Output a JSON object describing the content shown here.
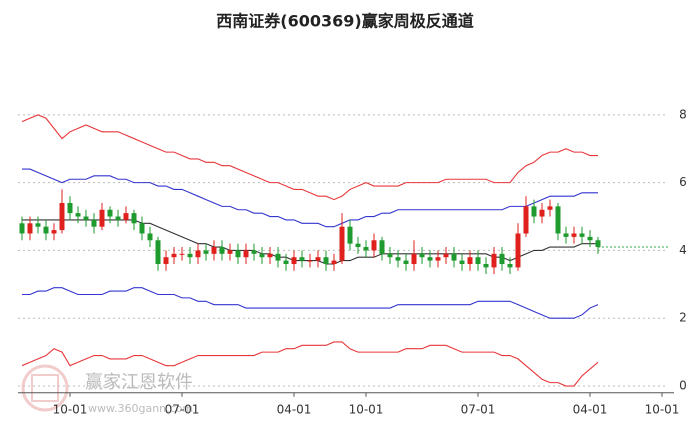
{
  "chart_data": {
    "type": "candlestick",
    "title": "西南证券(600369)赢家周极反通道",
    "watermark": [
      "赢家江恩软件",
      "www.360gann.com"
    ],
    "categories": [
      null,
      null,
      null,
      null,
      null,
      null,
      "10-01",
      null,
      null,
      null,
      null,
      null,
      null,
      null,
      null,
      null,
      null,
      null,
      null,
      null,
      "07-01",
      null,
      null,
      null,
      null,
      null,
      null,
      null,
      null,
      null,
      null,
      null,
      null,
      null,
      "04-01",
      null,
      null,
      null,
      null,
      null,
      null,
      null,
      null,
      "10-01",
      null,
      null,
      null,
      null,
      null,
      null,
      null,
      null,
      null,
      null,
      null,
      null,
      null,
      "07-01",
      null,
      null,
      null,
      null,
      null,
      null,
      null,
      null,
      null,
      null,
      null,
      null,
      null,
      "04-01",
      null,
      null,
      null,
      null,
      null,
      null,
      null,
      null,
      "10-01",
      null
    ],
    "open": [
      4.8,
      4.5,
      4.8,
      4.7,
      4.5,
      4.6,
      5.4,
      5.1,
      5.0,
      4.9,
      4.7,
      5.2,
      5.0,
      4.9,
      5.1,
      4.8,
      4.5,
      4.3,
      3.6,
      3.8,
      3.9,
      3.9,
      3.8,
      4.0,
      3.9,
      4.1,
      3.9,
      4.0,
      3.8,
      4.0,
      3.9,
      3.8,
      3.9,
      3.7,
      3.6,
      3.8,
      3.7,
      3.7,
      3.8,
      3.6,
      3.7,
      4.7,
      4.2,
      4.1,
      4.0,
      4.3,
      3.9,
      3.8,
      3.7,
      3.6,
      3.9,
      3.8,
      3.7,
      3.8,
      3.9,
      3.7,
      3.6,
      3.8,
      3.6,
      3.5,
      3.9,
      3.6,
      3.5,
      4.5,
      5.3,
      5.0,
      5.2,
      5.3,
      4.5,
      4.4,
      4.5,
      4.4,
      4.3,
      null,
      null,
      null,
      null,
      null,
      null,
      null,
      null,
      null
    ],
    "high": [
      5.0,
      5.0,
      5.0,
      4.9,
      4.8,
      5.8,
      5.6,
      5.3,
      5.2,
      5.1,
      5.4,
      5.3,
      5.2,
      5.3,
      5.2,
      5.0,
      4.7,
      4.4,
      4.0,
      4.1,
      4.1,
      4.1,
      4.2,
      4.2,
      4.3,
      4.3,
      4.2,
      4.2,
      4.2,
      4.2,
      4.1,
      4.1,
      4.1,
      3.9,
      4.0,
      4.0,
      3.9,
      4.0,
      4.0,
      3.9,
      5.1,
      4.9,
      4.4,
      4.3,
      4.5,
      4.4,
      4.1,
      4.0,
      3.9,
      4.3,
      4.1,
      4.0,
      4.0,
      4.1,
      4.1,
      3.9,
      4.0,
      4.0,
      3.8,
      4.1,
      4.1,
      3.8,
      4.8,
      5.6,
      5.5,
      5.4,
      5.5,
      5.4,
      4.7,
      4.7,
      4.7,
      4.6,
      4.4,
      null,
      null,
      null,
      null,
      null,
      null,
      null,
      null,
      null
    ],
    "low": [
      4.3,
      4.3,
      4.5,
      4.3,
      4.3,
      4.5,
      4.9,
      4.8,
      4.7,
      4.5,
      4.6,
      4.8,
      4.7,
      4.8,
      4.6,
      4.3,
      4.1,
      3.4,
      3.4,
      3.6,
      3.7,
      3.6,
      3.6,
      3.7,
      3.7,
      3.7,
      3.7,
      3.6,
      3.6,
      3.7,
      3.6,
      3.6,
      3.5,
      3.4,
      3.4,
      3.5,
      3.5,
      3.5,
      3.4,
      3.4,
      3.6,
      4.0,
      3.9,
      3.8,
      3.8,
      3.7,
      3.6,
      3.5,
      3.4,
      3.4,
      3.6,
      3.5,
      3.5,
      3.6,
      3.5,
      3.4,
      3.4,
      3.4,
      3.3,
      3.3,
      3.4,
      3.3,
      3.4,
      4.4,
      4.8,
      4.8,
      5.0,
      4.3,
      4.2,
      4.2,
      4.2,
      4.1,
      3.9,
      null,
      null,
      null,
      null,
      null,
      null,
      null,
      null,
      null
    ],
    "close": [
      4.5,
      4.8,
      4.7,
      4.5,
      4.6,
      5.4,
      5.1,
      5.0,
      4.9,
      4.7,
      5.2,
      5.0,
      4.9,
      5.1,
      4.8,
      4.5,
      4.3,
      3.6,
      3.8,
      3.9,
      3.9,
      3.8,
      4.0,
      3.9,
      4.1,
      3.9,
      4.0,
      3.8,
      4.0,
      3.9,
      3.8,
      3.9,
      3.7,
      3.6,
      3.8,
      3.7,
      3.7,
      3.8,
      3.6,
      3.7,
      4.7,
      4.2,
      4.1,
      4.0,
      4.3,
      3.9,
      3.8,
      3.7,
      3.6,
      3.9,
      3.8,
      3.7,
      3.8,
      3.9,
      3.7,
      3.6,
      3.8,
      3.6,
      3.5,
      3.9,
      3.6,
      3.5,
      4.5,
      5.3,
      5.0,
      5.2,
      5.3,
      4.5,
      4.4,
      4.5,
      4.4,
      4.3,
      4.1,
      null,
      null,
      null,
      null,
      null,
      null,
      null,
      null,
      null
    ],
    "up_color": "#e0201c",
    "down_color": "#1e9a2e",
    "last_color": "#2ea84a",
    "lines": [
      {
        "color": "#e8363a",
        "values": [
          7.8,
          7.9,
          8.0,
          7.9,
          7.6,
          7.3,
          7.5,
          7.6,
          7.7,
          7.6,
          7.5,
          7.5,
          7.5,
          7.4,
          7.3,
          7.2,
          7.1,
          7.0,
          6.9,
          6.9,
          6.8,
          6.7,
          6.7,
          6.6,
          6.6,
          6.5,
          6.5,
          6.4,
          6.3,
          6.2,
          6.1,
          6.0,
          6.0,
          5.9,
          5.8,
          5.8,
          5.7,
          5.6,
          5.6,
          5.5,
          5.6,
          5.8,
          5.9,
          6.0,
          5.9,
          5.9,
          5.9,
          5.9,
          6.0,
          6.0,
          6.0,
          6.0,
          6.0,
          6.1,
          6.1,
          6.1,
          6.1,
          6.1,
          6.1,
          6.0,
          6.0,
          6.0,
          6.3,
          6.5,
          6.6,
          6.8,
          6.9,
          6.9,
          7.0,
          6.9,
          6.9,
          6.8,
          6.8,
          null,
          null,
          null,
          null,
          null,
          null,
          null,
          null,
          null
        ]
      },
      {
        "color": "#3434d0",
        "values": [
          6.4,
          6.4,
          6.3,
          6.2,
          6.1,
          6.0,
          6.1,
          6.1,
          6.1,
          6.2,
          6.2,
          6.2,
          6.1,
          6.1,
          6.0,
          6.0,
          6.0,
          5.9,
          5.9,
          5.8,
          5.8,
          5.7,
          5.6,
          5.5,
          5.4,
          5.3,
          5.3,
          5.2,
          5.2,
          5.1,
          5.1,
          5.0,
          5.0,
          4.9,
          4.9,
          4.8,
          4.8,
          4.8,
          4.7,
          4.7,
          4.8,
          4.9,
          4.9,
          5.0,
          5.0,
          5.1,
          5.1,
          5.2,
          5.2,
          5.2,
          5.2,
          5.2,
          5.2,
          5.2,
          5.2,
          5.2,
          5.2,
          5.2,
          5.2,
          5.2,
          5.2,
          5.3,
          5.3,
          5.3,
          5.4,
          5.5,
          5.6,
          5.6,
          5.6,
          5.6,
          5.7,
          5.7,
          5.7,
          null,
          null,
          null,
          null,
          null,
          null,
          null,
          null,
          null
        ]
      },
      {
        "color": "#333333",
        "values": [
          4.9,
          4.9,
          4.9,
          4.9,
          4.9,
          4.9,
          4.9,
          4.9,
          4.9,
          4.9,
          4.9,
          4.9,
          4.9,
          4.9,
          4.9,
          4.8,
          4.8,
          4.7,
          4.6,
          4.5,
          4.4,
          4.3,
          4.2,
          4.2,
          4.1,
          4.1,
          4.0,
          4.0,
          4.0,
          4.0,
          3.9,
          3.9,
          3.8,
          3.8,
          3.7,
          3.7,
          3.7,
          3.7,
          3.6,
          3.6,
          3.7,
          3.7,
          3.8,
          3.8,
          3.8,
          3.9,
          3.9,
          3.9,
          3.9,
          3.9,
          3.9,
          3.9,
          3.9,
          3.9,
          3.9,
          3.9,
          3.9,
          3.9,
          3.9,
          3.8,
          3.8,
          3.7,
          3.8,
          3.9,
          4.0,
          4.0,
          4.1,
          4.1,
          4.1,
          4.1,
          4.2,
          4.2,
          4.2,
          null,
          null,
          null,
          null,
          null,
          null,
          null,
          null,
          null
        ]
      },
      {
        "color": "#3434d0",
        "values": [
          2.7,
          2.7,
          2.8,
          2.8,
          2.9,
          2.9,
          2.8,
          2.7,
          2.7,
          2.7,
          2.7,
          2.8,
          2.8,
          2.8,
          2.9,
          2.9,
          2.8,
          2.7,
          2.7,
          2.7,
          2.6,
          2.6,
          2.5,
          2.5,
          2.4,
          2.4,
          2.4,
          2.4,
          2.3,
          2.3,
          2.3,
          2.3,
          2.3,
          2.3,
          2.3,
          2.3,
          2.3,
          2.3,
          2.3,
          2.3,
          2.3,
          2.3,
          2.3,
          2.3,
          2.3,
          2.3,
          2.3,
          2.4,
          2.4,
          2.4,
          2.4,
          2.4,
          2.4,
          2.4,
          2.4,
          2.4,
          2.4,
          2.5,
          2.5,
          2.5,
          2.5,
          2.5,
          2.4,
          2.3,
          2.2,
          2.1,
          2.0,
          2.0,
          2.0,
          2.0,
          2.1,
          2.3,
          2.4,
          null,
          null,
          null,
          null,
          null,
          null,
          null,
          null,
          null
        ]
      },
      {
        "color": "#e8363a",
        "values": [
          0.6,
          0.7,
          0.8,
          0.9,
          1.1,
          1.0,
          0.6,
          0.7,
          0.8,
          0.9,
          0.9,
          0.8,
          0.8,
          0.8,
          0.9,
          0.9,
          0.8,
          0.7,
          0.6,
          0.6,
          0.7,
          0.8,
          0.9,
          0.9,
          0.9,
          0.9,
          0.9,
          0.9,
          0.9,
          0.9,
          1.0,
          1.0,
          1.0,
          1.1,
          1.1,
          1.2,
          1.2,
          1.2,
          1.2,
          1.3,
          1.3,
          1.1,
          1.0,
          1.0,
          1.0,
          1.0,
          1.0,
          1.0,
          1.1,
          1.1,
          1.1,
          1.2,
          1.2,
          1.2,
          1.1,
          1.0,
          1.0,
          1.0,
          1.0,
          1.0,
          0.9,
          0.9,
          0.8,
          0.6,
          0.4,
          0.2,
          0.1,
          0.1,
          0.0,
          0.0,
          0.3,
          0.5,
          0.7,
          null,
          null,
          null,
          null,
          null,
          null,
          null,
          null,
          null
        ]
      }
    ],
    "ylim": [
      -0.2,
      8.6
    ],
    "yticks": [
      0,
      2,
      4,
      6,
      8
    ],
    "grid": true
  }
}
